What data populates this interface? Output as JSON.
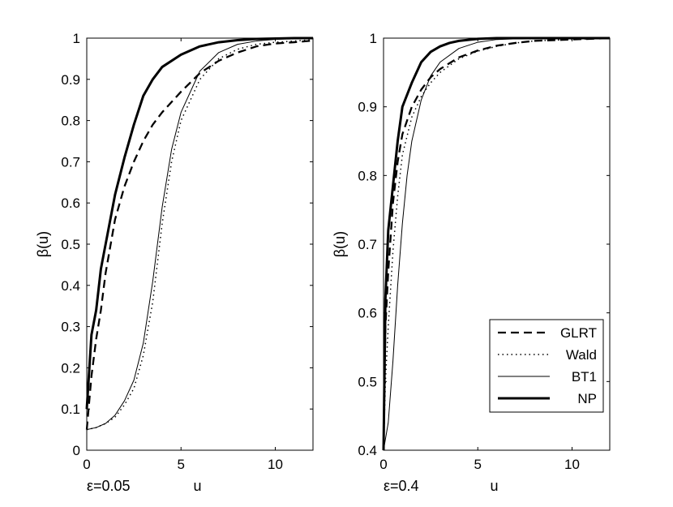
{
  "figure": {
    "panels": [
      {
        "epsilon_label": "ε=0.05"
      },
      {
        "epsilon_label": "ε=0.4"
      }
    ]
  },
  "chart_data": [
    {
      "type": "line",
      "subtitle": "ε=0.05",
      "xlabel": "u",
      "ylabel": "β(u)",
      "xlim": [
        0,
        12
      ],
      "ylim": [
        0,
        1
      ],
      "xticks": [
        0,
        5,
        10
      ],
      "yticks": [
        0,
        0.1,
        0.2,
        0.3,
        0.4,
        0.5,
        0.6,
        0.7,
        0.8,
        0.9,
        1
      ],
      "ytick_labels": [
        "0",
        "0.1",
        "0.2",
        "0.3",
        "0.4",
        "0.5",
        "0.6",
        "0.7",
        "0.8",
        "0.9",
        "1"
      ],
      "grid": false,
      "legend": null,
      "series": [
        {
          "name": "GLRT",
          "style": "dashed",
          "x": [
            0,
            0.25,
            0.5,
            0.75,
            1,
            1.5,
            2,
            2.5,
            3,
            3.5,
            4,
            5,
            6,
            7,
            8,
            9,
            10,
            11,
            12
          ],
          "y": [
            0.05,
            0.18,
            0.27,
            0.34,
            0.43,
            0.56,
            0.64,
            0.7,
            0.75,
            0.79,
            0.82,
            0.87,
            0.915,
            0.945,
            0.965,
            0.98,
            0.987,
            0.99,
            0.994
          ]
        },
        {
          "name": "Wald",
          "style": "dotted",
          "x": [
            0,
            0.5,
            1,
            1.5,
            2,
            2.5,
            3,
            3.5,
            4,
            4.5,
            5,
            6,
            7,
            8,
            9,
            10,
            11,
            12
          ],
          "y": [
            0.05,
            0.055,
            0.065,
            0.08,
            0.11,
            0.15,
            0.23,
            0.36,
            0.55,
            0.7,
            0.8,
            0.9,
            0.95,
            0.973,
            0.985,
            0.99,
            0.993,
            0.996
          ]
        },
        {
          "name": "BT1",
          "style": "thin",
          "x": [
            0,
            0.5,
            1,
            1.5,
            2,
            2.5,
            3,
            3.5,
            4,
            4.5,
            5,
            6,
            7,
            8,
            9,
            10,
            11,
            12
          ],
          "y": [
            0.05,
            0.055,
            0.065,
            0.085,
            0.12,
            0.17,
            0.26,
            0.41,
            0.59,
            0.73,
            0.82,
            0.92,
            0.965,
            0.985,
            0.993,
            0.997,
            0.999,
            1.0
          ]
        },
        {
          "name": "NP",
          "style": "thick",
          "x": [
            0,
            0.25,
            0.5,
            0.75,
            1,
            1.5,
            2,
            2.5,
            3,
            3.5,
            4,
            5,
            6,
            7,
            8,
            9,
            10,
            11,
            12
          ],
          "y": [
            0.1,
            0.28,
            0.34,
            0.44,
            0.5,
            0.62,
            0.71,
            0.79,
            0.86,
            0.9,
            0.93,
            0.96,
            0.98,
            0.99,
            0.995,
            0.998,
            0.999,
            1.0,
            1.0
          ]
        }
      ]
    },
    {
      "type": "line",
      "subtitle": "ε=0.4",
      "xlabel": "u",
      "ylabel": "β(u)",
      "xlim": [
        0,
        12
      ],
      "ylim": [
        0.4,
        1
      ],
      "xticks": [
        0,
        5,
        10
      ],
      "yticks": [
        0.4,
        0.5,
        0.6,
        0.7,
        0.8,
        0.9,
        1
      ],
      "ytick_labels": [
        "0.4",
        "0.5",
        "0.6",
        "0.7",
        "0.8",
        "0.9",
        "1"
      ],
      "grid": false,
      "legend": "center-right",
      "series": [
        {
          "name": "GLRT",
          "style": "dashed",
          "x": [
            0,
            0.1,
            0.25,
            0.5,
            0.75,
            1,
            1.5,
            2,
            2.5,
            3,
            4,
            5,
            6,
            7,
            8,
            10,
            12
          ],
          "y": [
            0.4,
            0.58,
            0.66,
            0.76,
            0.82,
            0.86,
            0.9,
            0.925,
            0.943,
            0.955,
            0.972,
            0.982,
            0.989,
            0.993,
            0.996,
            0.998,
            1.0
          ]
        },
        {
          "name": "Wald",
          "style": "dotted",
          "x": [
            0,
            0.1,
            0.25,
            0.5,
            0.75,
            1,
            1.5,
            2,
            2.5,
            3,
            4,
            5,
            6,
            7,
            8,
            10,
            12
          ],
          "y": [
            0.4,
            0.5,
            0.58,
            0.69,
            0.77,
            0.83,
            0.885,
            0.915,
            0.935,
            0.95,
            0.97,
            0.981,
            0.988,
            0.993,
            0.996,
            0.998,
            1.0
          ]
        },
        {
          "name": "BT1",
          "style": "thin",
          "x": [
            0,
            0.25,
            0.5,
            0.75,
            1,
            1.25,
            1.5,
            2,
            2.5,
            3,
            4,
            5,
            6,
            8,
            10,
            12
          ],
          "y": [
            0.4,
            0.44,
            0.53,
            0.64,
            0.73,
            0.8,
            0.85,
            0.91,
            0.945,
            0.965,
            0.985,
            0.994,
            0.998,
            1.0,
            1.0,
            1.0
          ]
        },
        {
          "name": "NP",
          "style": "thick",
          "x": [
            0,
            0.1,
            0.25,
            0.5,
            0.75,
            1,
            1.5,
            2,
            2.5,
            3,
            3.5,
            4,
            5,
            6,
            8,
            10,
            12
          ],
          "y": [
            0.4,
            0.62,
            0.72,
            0.785,
            0.85,
            0.9,
            0.935,
            0.965,
            0.98,
            0.988,
            0.993,
            0.996,
            0.999,
            1.0,
            1.0,
            1.0,
            1.0
          ]
        }
      ]
    }
  ]
}
